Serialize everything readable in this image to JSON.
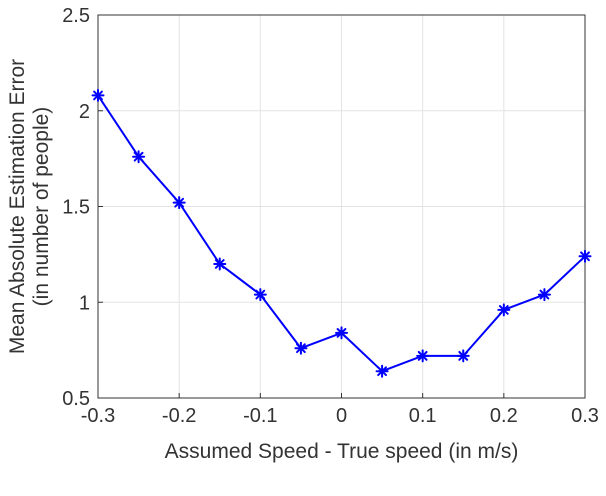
{
  "chart_data": {
    "type": "line",
    "xlabel": "Assumed Speed - True speed (in m/s)",
    "ylabel_line1": "Mean Absolute Estimation Error",
    "ylabel_line2": "(in number of people)",
    "xlim": [
      -0.3,
      0.3
    ],
    "ylim": [
      0.5,
      2.5
    ],
    "x_ticks": [
      -0.3,
      -0.2,
      -0.1,
      0,
      0.1,
      0.2,
      0.3
    ],
    "x_tick_labels": [
      "-0.3",
      "-0.2",
      "-0.1",
      "0",
      "0.1",
      "0.2",
      "0.3"
    ],
    "y_ticks": [
      0.5,
      1,
      1.5,
      2,
      2.5
    ],
    "y_tick_labels": [
      "0.5",
      "1",
      "1.5",
      "2",
      "2.5"
    ],
    "grid": true,
    "series": [
      {
        "marker": "asterisk",
        "color": "#0000ff",
        "x": [
          -0.3,
          -0.25,
          -0.2,
          -0.15,
          -0.1,
          -0.05,
          0,
          0.05,
          0.1,
          0.15,
          0.2,
          0.25,
          0.3
        ],
        "y": [
          2.08,
          1.76,
          1.52,
          1.2,
          1.04,
          0.76,
          0.84,
          0.64,
          0.72,
          0.72,
          0.96,
          1.04,
          1.24
        ]
      }
    ]
  }
}
